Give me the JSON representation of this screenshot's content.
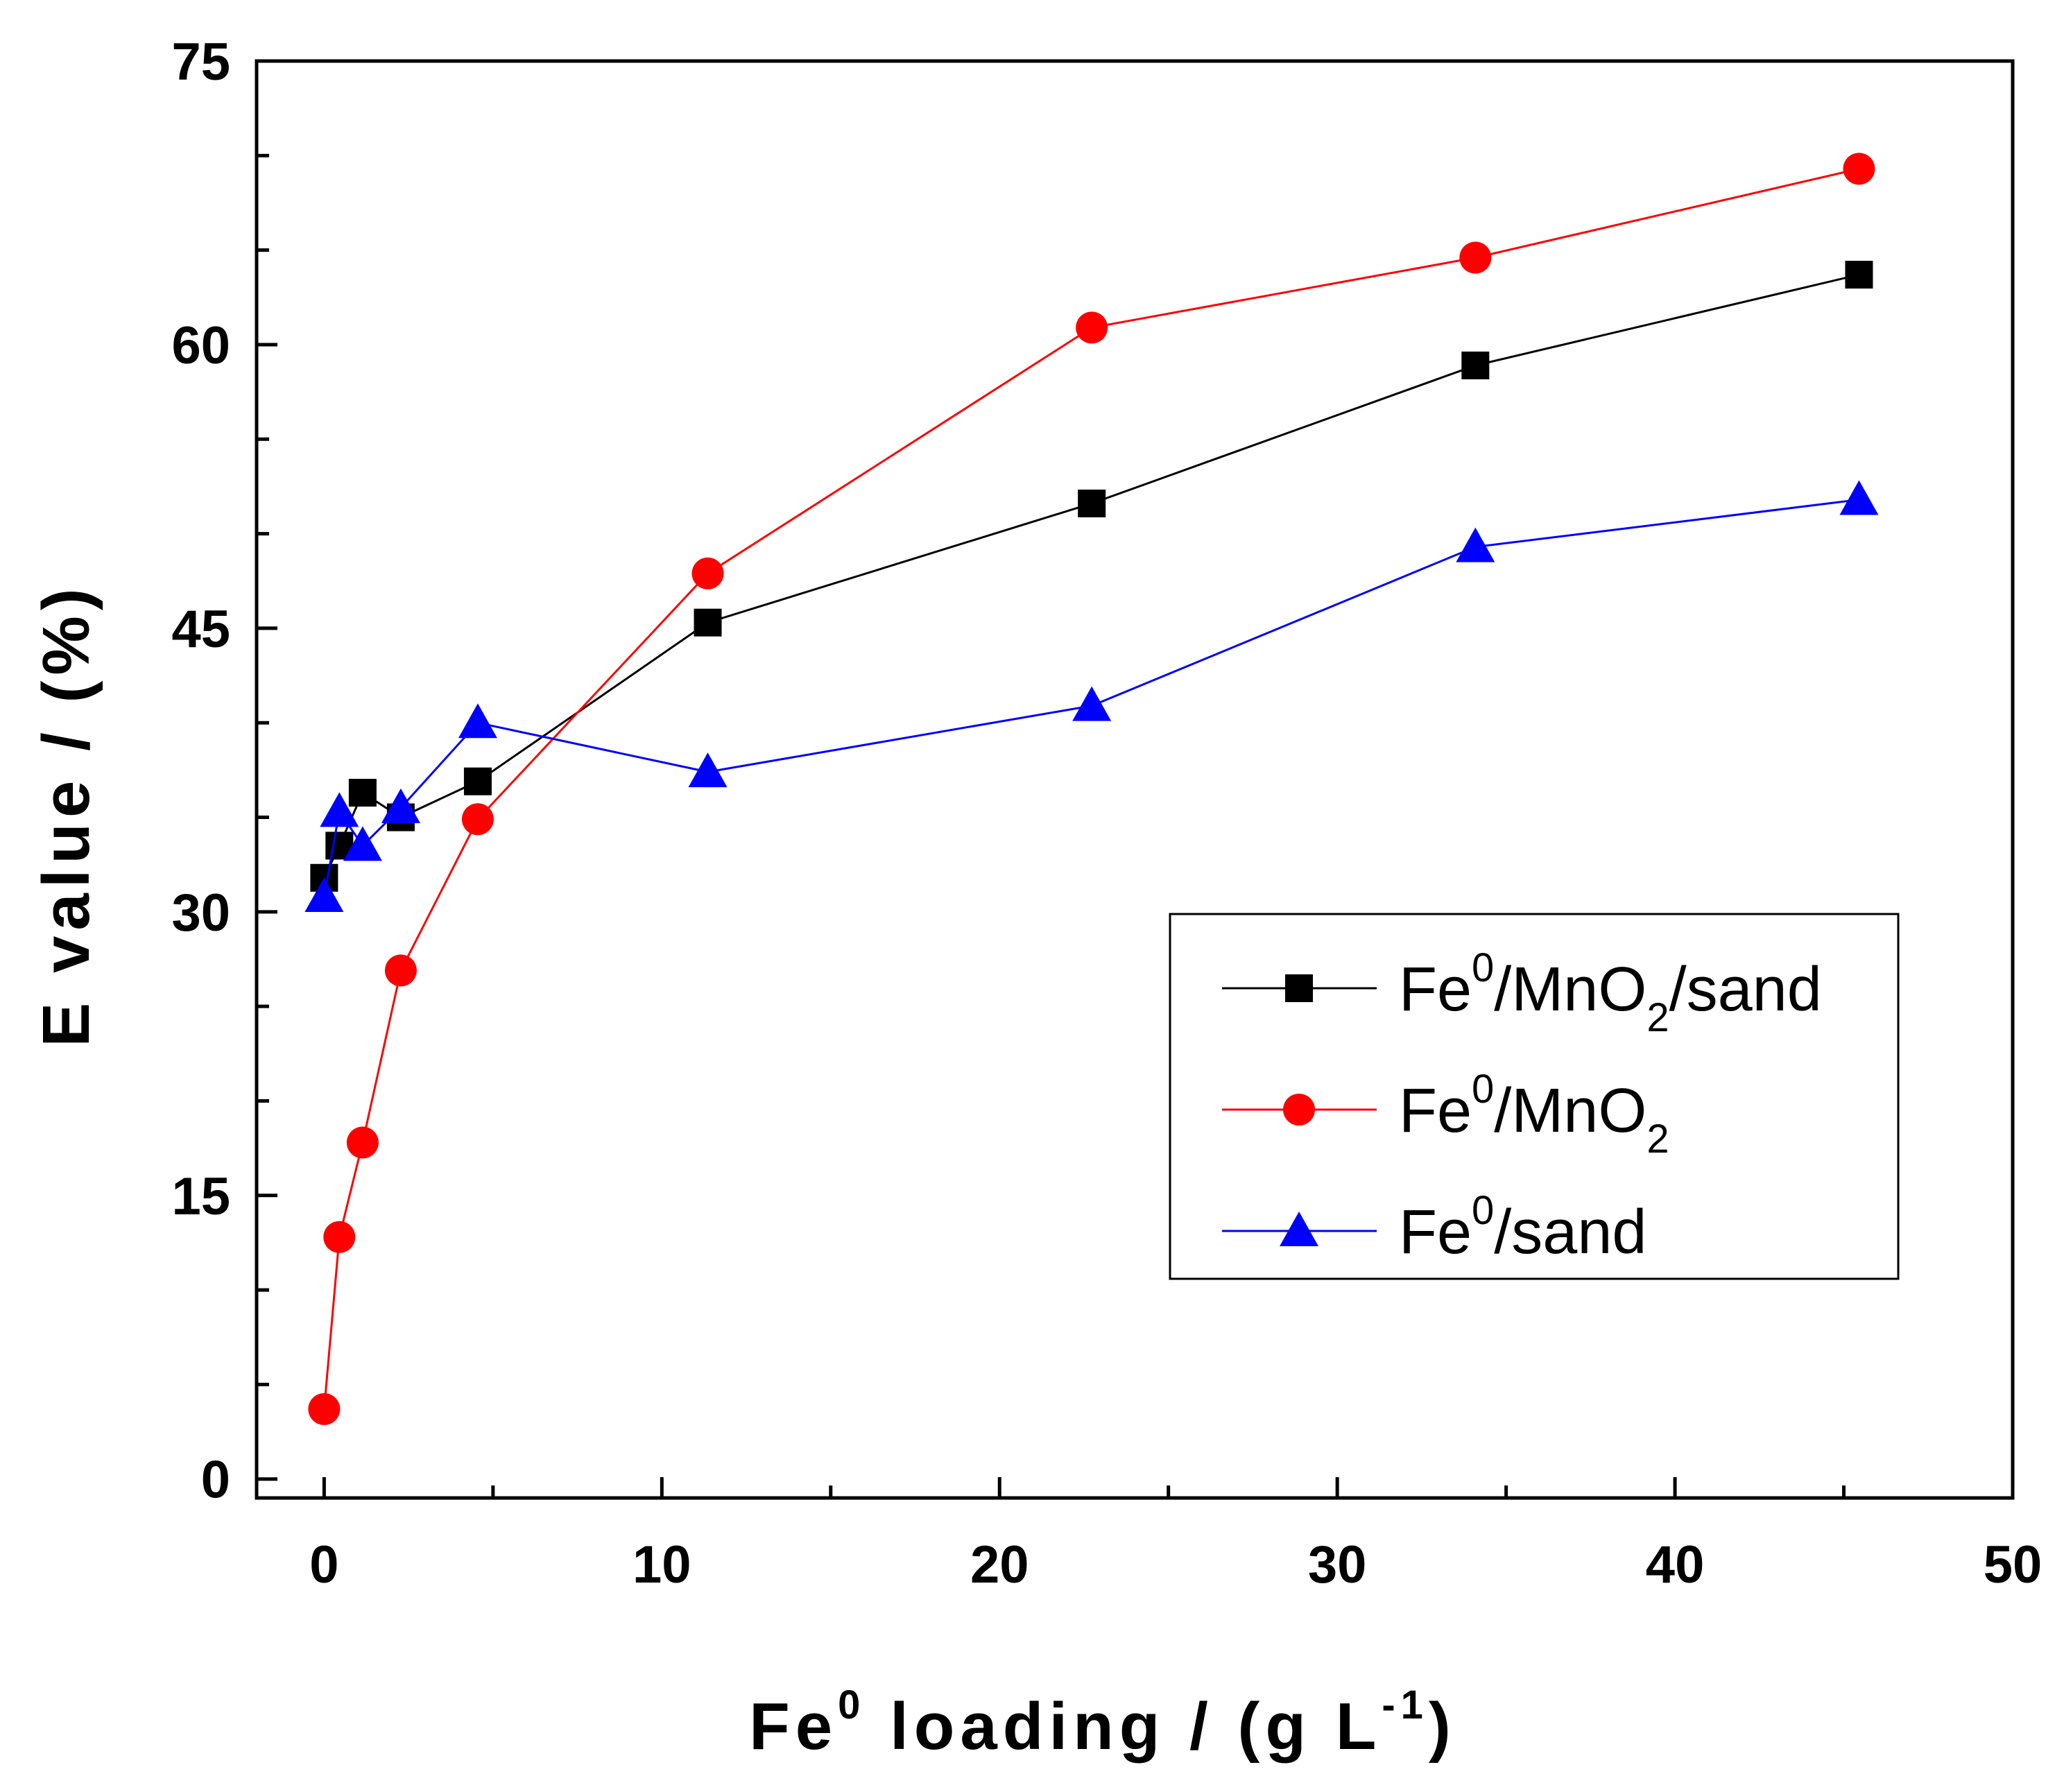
{
  "chart_data": {
    "type": "line",
    "xlabel": "Fe",
    "xlabel_sup": "0",
    "xlabel_tail": " loading / (g L",
    "xlabel_unit_sup": "-1",
    "xlabel_close": ")",
    "ylabel": "E value / (%)",
    "xlim": [
      -2,
      50
    ],
    "ylim": [
      -1,
      75
    ],
    "x_ticks": [
      {
        "value": 0,
        "label": "0"
      },
      {
        "value": 10,
        "label": "10"
      },
      {
        "value": 20,
        "label": "20"
      },
      {
        "value": 30,
        "label": "30"
      },
      {
        "value": 40,
        "label": "40"
      },
      {
        "value": 50,
        "label": "50"
      }
    ],
    "x_minor_ticks": [
      5,
      15,
      25,
      35,
      45
    ],
    "y_ticks": [
      {
        "value": 0,
        "label": "0"
      },
      {
        "value": 15,
        "label": "15"
      },
      {
        "value": 30,
        "label": "30"
      },
      {
        "value": 45,
        "label": "45"
      },
      {
        "value": 60,
        "label": "60"
      },
      {
        "value": 75,
        "label": "75"
      }
    ],
    "y_minor_ticks": [
      5,
      10,
      20,
      25,
      35,
      40,
      50,
      55,
      65,
      70
    ],
    "grid": false,
    "legend_position": "center-right",
    "series": [
      {
        "name": "Fe0/MnO2/sand",
        "legend_label": {
          "base": "Fe",
          "sup": "0",
          "mid": "/MnO",
          "sub": "2",
          "tail": "/sand"
        },
        "color": "#000000",
        "marker": "square",
        "x": [
          0,
          0.45,
          1.14,
          2.27,
          4.55,
          11.36,
          22.73,
          34.09,
          45.45
        ],
        "y": [
          31.8,
          33.5,
          36.3,
          35.0,
          36.9,
          45.3,
          51.6,
          58.9,
          63.7
        ]
      },
      {
        "name": "Fe0/MnO2",
        "legend_label": {
          "base": "Fe",
          "sup": "0",
          "mid": "/MnO",
          "sub": "2",
          "tail": ""
        },
        "color": "#ff0000",
        "marker": "circle",
        "x": [
          0,
          0.45,
          1.14,
          2.27,
          4.55,
          11.36,
          22.73,
          34.09,
          45.45
        ],
        "y": [
          3.7,
          12.8,
          17.8,
          26.9,
          34.9,
          47.9,
          60.9,
          64.6,
          69.3
        ]
      },
      {
        "name": "Fe0/sand",
        "legend_label": {
          "base": "Fe",
          "sup": "0",
          "mid": "/sand",
          "sub": "",
          "tail": ""
        },
        "color": "#0000ff",
        "marker": "triangle",
        "x": [
          0,
          0.45,
          1.14,
          2.27,
          4.55,
          11.36,
          22.73,
          34.09,
          45.45
        ],
        "y": [
          30.8,
          35.3,
          33.5,
          35.5,
          40.0,
          37.4,
          40.9,
          49.3,
          51.8
        ]
      }
    ]
  }
}
